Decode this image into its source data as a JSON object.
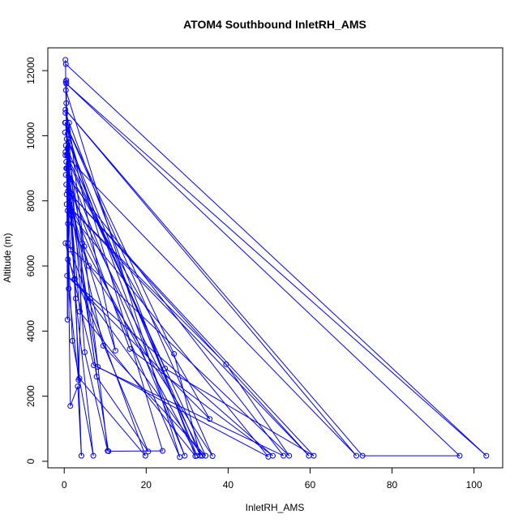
{
  "chart_data": {
    "type": "line",
    "title": "ATOM4 Southbound InletRH_AMS",
    "xlabel": "InletRH_AMS",
    "ylabel": "Altitude (m)",
    "xlim": [
      -4,
      107
    ],
    "ylim": [
      -200,
      12700
    ],
    "xticks": [
      "0",
      "20",
      "40",
      "60",
      "80",
      "100"
    ],
    "yticks": [
      "0",
      "2000",
      "4000",
      "6000",
      "8000",
      "10000",
      "12000"
    ],
    "grid": false,
    "legend": "none",
    "series_color": "#0000ff",
    "series": [
      {
        "x": [
          0.3,
          1.5,
          3.3,
          4.2,
          2.6,
          1.0,
          0.8,
          0.5,
          0.9,
          2.0,
          7.1,
          2.8,
          0.7,
          0.4,
          1.1,
          3.5,
          4.4,
          0.6,
          0.5,
          5.0,
          10.6,
          6.3,
          1.2,
          0.9,
          0.5,
          1.5,
          19.8,
          3.7,
          0.8,
          0.3,
          24.0,
          10.8,
          1.3,
          0.9,
          20.5,
          7.9,
          1.0,
          0.4,
          28.2,
          0.6,
          12.5,
          0.3,
          32.0,
          3.8,
          0.7,
          29.4,
          0.2,
          32.4,
          4.9,
          0.3,
          34.5,
          9.5,
          0.5,
          33.7,
          2.5,
          0.4,
          33.2,
          26.8,
          0.2,
          36.2,
          6.0,
          0.8,
          49.8,
          8.2,
          0.5,
          35.5,
          0.7,
          50.9,
          16.0,
          0.4,
          53.5,
          7.2,
          0.3,
          54.9,
          39.5,
          0.6,
          59.7,
          0.9,
          60.9,
          24.6,
          0.3,
          71.3,
          0.3,
          72.8,
          96.5,
          0.5,
          103.0,
          0.4
        ],
        "y": [
          12330,
          1700,
          2300,
          170,
          5600,
          9800,
          4350,
          11700,
          6700,
          3700,
          170,
          5000,
          9400,
          11650,
          5300,
          2500,
          6700,
          9900,
          11000,
          3350,
          320,
          5000,
          10400,
          7300,
          9200,
          6500,
          170,
          2550,
          9600,
          10400,
          320,
          310,
          8100,
          6200,
          300,
          2600,
          9000,
          11400,
          130,
          8200,
          3400,
          10700,
          160,
          4600,
          9000,
          170,
          10100,
          170,
          6600,
          9500,
          170,
          3550,
          8500,
          170,
          5600,
          9700,
          170,
          3300,
          10400,
          160,
          6000,
          7700,
          140,
          2900,
          9000,
          1300,
          5700,
          170,
          3450,
          8800,
          170,
          2950,
          6700,
          170,
          2980,
          7900,
          170,
          8300,
          170,
          2850,
          9400,
          170,
          10800,
          170,
          170,
          11600,
          170,
          12200
        ]
      }
    ]
  }
}
